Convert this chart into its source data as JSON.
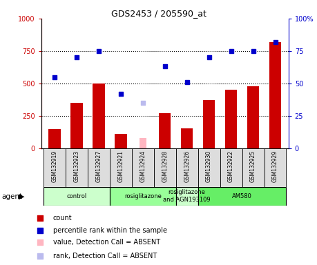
{
  "title": "GDS2453 / 205590_at",
  "samples": [
    "GSM132919",
    "GSM132923",
    "GSM132927",
    "GSM132921",
    "GSM132924",
    "GSM132928",
    "GSM132926",
    "GSM132930",
    "GSM132922",
    "GSM132925",
    "GSM132929"
  ],
  "bar_values": [
    150,
    350,
    500,
    110,
    null,
    270,
    155,
    370,
    450,
    480,
    820
  ],
  "bar_absent_values": [
    null,
    null,
    null,
    null,
    80,
    null,
    null,
    null,
    null,
    null,
    null
  ],
  "rank_values": [
    55,
    70,
    75,
    42,
    null,
    63,
    51,
    70,
    75,
    75,
    82
  ],
  "rank_absent_values": [
    null,
    null,
    null,
    null,
    35,
    null,
    null,
    null,
    null,
    null,
    null
  ],
  "bar_color": "#CC0000",
  "bar_absent_color": "#FFB6C1",
  "rank_color": "#0000CC",
  "rank_absent_color": "#BBBBEE",
  "ylim_left": [
    0,
    1000
  ],
  "ylim_right": [
    0,
    100
  ],
  "yticks_left": [
    0,
    250,
    500,
    750,
    1000
  ],
  "yticks_right": [
    0,
    25,
    50,
    75,
    100
  ],
  "groups": [
    {
      "label": "control",
      "start": 0,
      "end": 3,
      "color": "#CCFFCC"
    },
    {
      "label": "rosiglitazone",
      "start": 3,
      "end": 6,
      "color": "#99FF99"
    },
    {
      "label": "rosiglitazone\nand AGN193109",
      "start": 6,
      "end": 7,
      "color": "#CCFFCC"
    },
    {
      "label": "AM580",
      "start": 7,
      "end": 11,
      "color": "#66EE66"
    }
  ],
  "legend_items": [
    {
      "label": "count",
      "color": "#CC0000"
    },
    {
      "label": "percentile rank within the sample",
      "color": "#0000CC"
    },
    {
      "label": "value, Detection Call = ABSENT",
      "color": "#FFB6C1"
    },
    {
      "label": "rank, Detection Call = ABSENT",
      "color": "#BBBBEE"
    }
  ]
}
